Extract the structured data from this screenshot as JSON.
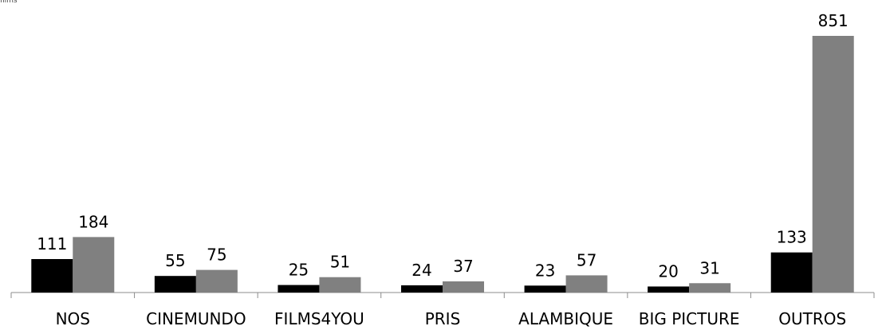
{
  "header": {
    "top_label": "films"
  },
  "chart_data": {
    "type": "bar",
    "categories": [
      "NOS",
      "CINEMUNDO",
      "FILMS4YOU",
      "PRIS",
      "ALAMBIQUE",
      "BIG PICTURE",
      "OUTROS"
    ],
    "series": [
      {
        "values": [
          111,
          55,
          25,
          24,
          23,
          20,
          133
        ],
        "color": "#000000"
      },
      {
        "values": [
          184,
          75,
          51,
          37,
          57,
          31,
          851
        ],
        "color": "#808080"
      }
    ],
    "title": "",
    "xlabel": "",
    "ylabel": "",
    "ylim": [
      0,
      851
    ],
    "grid": false,
    "data_labels": true,
    "legend": "none"
  }
}
